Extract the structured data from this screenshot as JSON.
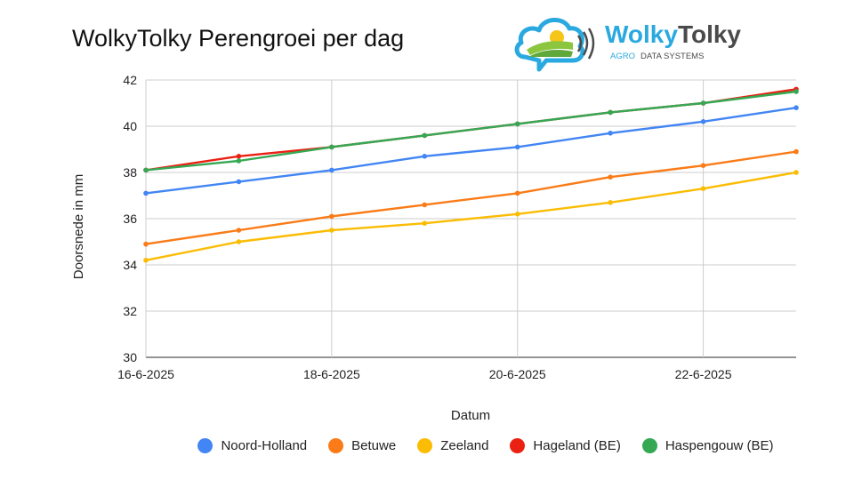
{
  "chart_data": {
    "type": "line",
    "title": "WolkyTolky Perengroei per dag",
    "xlabel": "Datum",
    "ylabel": "Doorsnede in mm",
    "ylim": [
      30,
      42
    ],
    "yticks": [
      "30",
      "32",
      "34",
      "36",
      "38",
      "40",
      "42"
    ],
    "xticks": [
      "16-6-2025",
      "18-6-2025",
      "20-6-2025",
      "22-6-2025"
    ],
    "x": [
      "16-6-2025",
      "17-6-2025",
      "18-6-2025",
      "19-6-2025",
      "20-6-2025",
      "21-6-2025",
      "22-6-2025",
      "23-6-2025"
    ],
    "grid": true,
    "legend_position": "bottom",
    "series": [
      {
        "name": "Noord-Holland",
        "color": "#4285f4",
        "values": [
          37.1,
          37.6,
          38.1,
          38.7,
          39.1,
          39.7,
          40.2,
          40.8
        ]
      },
      {
        "name": "Betuwe",
        "color": "#fa7b17",
        "values": [
          34.9,
          35.5,
          36.1,
          36.6,
          37.1,
          37.8,
          38.3,
          38.9
        ]
      },
      {
        "name": "Zeeland",
        "color": "#fbbc04",
        "values": [
          34.2,
          35.0,
          35.5,
          35.8,
          36.2,
          36.7,
          37.3,
          38.0
        ]
      },
      {
        "name": "Hageland (BE)",
        "color": "#ea2012",
        "values": [
          38.1,
          38.7,
          39.1,
          39.6,
          40.1,
          40.6,
          41.0,
          41.6
        ]
      },
      {
        "name": "Haspengouw (BE)",
        "color": "#34a853",
        "values": [
          38.1,
          38.5,
          39.1,
          39.6,
          40.1,
          40.6,
          41.0,
          41.5
        ]
      }
    ]
  },
  "logo": {
    "name_part1": "Wolky",
    "name_part2": "Tolky",
    "tagline_part1": "AGRO",
    "tagline_part2": "DATA SYSTEMS",
    "color_primary": "#2aa9e0",
    "color_dark": "#4a4a4a",
    "color_green": "#8cc63f"
  }
}
